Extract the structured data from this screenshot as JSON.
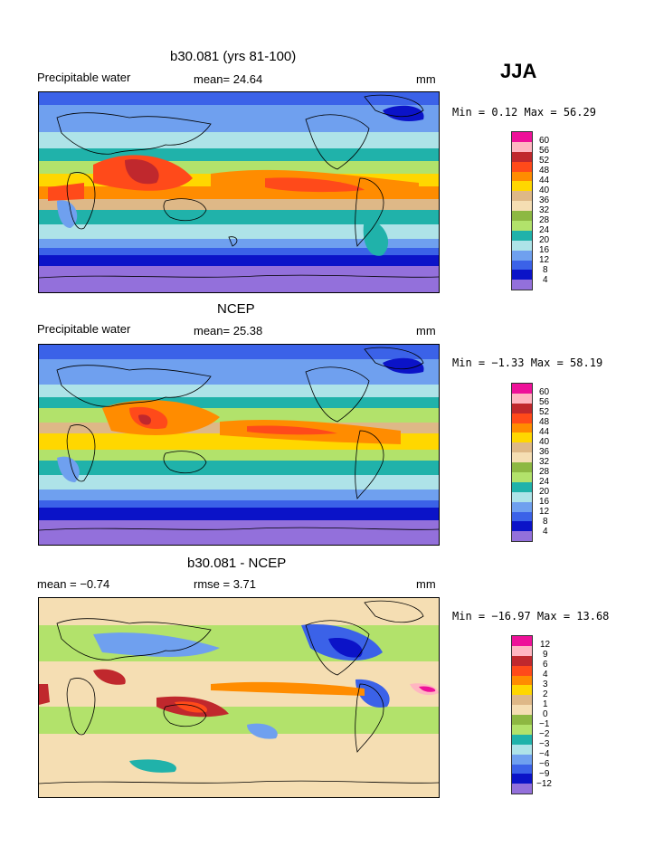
{
  "season": "JJA",
  "panels": [
    {
      "title": "b30.081 (yrs 81-100)",
      "left_label": "Precipitable water",
      "mid_label": "mean=  24.64",
      "unit": "mm",
      "stats": "Min =   0.12 Max =  56.29",
      "legend_labels": [
        "60",
        "56",
        "52",
        "48",
        "44",
        "40",
        "36",
        "32",
        "28",
        "24",
        "20",
        "16",
        "12",
        "8",
        "4"
      ]
    },
    {
      "title": "NCEP",
      "left_label": "Precipitable water",
      "mid_label": "mean=  25.38",
      "unit": "mm",
      "stats": "Min =  −1.33 Max =  58.19",
      "legend_labels": [
        "60",
        "56",
        "52",
        "48",
        "44",
        "40",
        "36",
        "32",
        "28",
        "24",
        "20",
        "16",
        "12",
        "8",
        "4"
      ]
    },
    {
      "title": "b30.081 - NCEP",
      "left_label": "mean =  −0.74",
      "mid_label": "rmse =   3.71",
      "unit": "mm",
      "stats": "Min = −16.97 Max =  13.68",
      "legend_labels": [
        "12",
        "9",
        "6",
        "4",
        "3",
        "2",
        "1",
        "0",
        "−1",
        "−2",
        "−3",
        "−4",
        "−6",
        "−9",
        "−12"
      ]
    }
  ],
  "colors": {
    "scale": [
      "#ee1199",
      "#ffb6c1",
      "#c0282d",
      "#ff4a1a",
      "#ff8c00",
      "#ffd700",
      "#deb887",
      "#f5deb3",
      "#8db842",
      "#b2e26b",
      "#20b2aa",
      "#aee3e8",
      "#6fa0ef",
      "#3b62e8",
      "#0b13c8",
      "#9370db"
    ]
  }
}
